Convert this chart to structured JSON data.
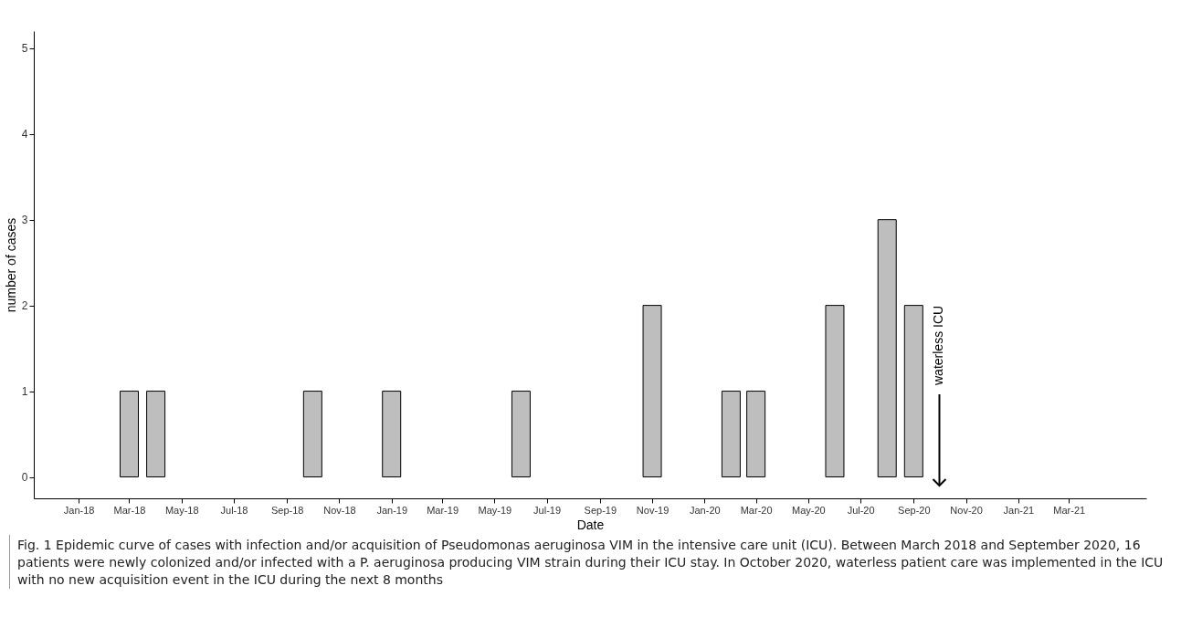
{
  "chart_data": {
    "type": "bar",
    "xlabel": "Date",
    "ylabel": "number of cases",
    "x": [
      "2018-03",
      "2018-04",
      "2018-10",
      "2019-01",
      "2019-06",
      "2019-11",
      "2020-02",
      "2020-03",
      "2020-06",
      "2020-08",
      "2020-09"
    ],
    "values": [
      1,
      1,
      1,
      1,
      1,
      2,
      1,
      1,
      2,
      3,
      2
    ],
    "color": "#bebebe",
    "xlim": [
      "2017-11-15",
      "2021-05-25"
    ],
    "xticks": [
      {
        "value": "2018-01",
        "label": "Jan-18"
      },
      {
        "value": "2018-03",
        "label": "Mar-18"
      },
      {
        "value": "2018-05",
        "label": "May-18"
      },
      {
        "value": "2018-07",
        "label": "Jul-18"
      },
      {
        "value": "2018-09",
        "label": "Sep-18"
      },
      {
        "value": "2018-11",
        "label": "Nov-18"
      },
      {
        "value": "2019-01",
        "label": "Jan-19"
      },
      {
        "value": "2019-03",
        "label": "Mar-19"
      },
      {
        "value": "2019-05",
        "label": "May-19"
      },
      {
        "value": "2019-07",
        "label": "Jul-19"
      },
      {
        "value": "2019-09",
        "label": "Sep-19"
      },
      {
        "value": "2019-11",
        "label": "Nov-19"
      },
      {
        "value": "2020-01",
        "label": "Jan-20"
      },
      {
        "value": "2020-03",
        "label": "Mar-20"
      },
      {
        "value": "2020-05",
        "label": "May-20"
      },
      {
        "value": "2020-07",
        "label": "Jul-20"
      },
      {
        "value": "2020-09",
        "label": "Sep-20"
      },
      {
        "value": "2020-11",
        "label": "Nov-20"
      },
      {
        "value": "2021-01",
        "label": "Jan-21"
      },
      {
        "value": "2021-03",
        "label": "Mar-21"
      }
    ],
    "ylim": [
      -0.25,
      5.2
    ],
    "yticks": [
      0,
      1,
      2,
      3,
      4,
      5
    ],
    "grid": false,
    "ref_lines": [
      {
        "axis": "x",
        "value": "2020-10",
        "label": "waterless ICU"
      }
    ],
    "annotations": [
      "Fig. 1 Epidemic curve of cases with infection and/or acquisition of Pseudomonas aeruginosa VIM in the intensive care unit (ICU). Between March 2018 and September 2020, 16 patients were newly colonized and/or infected with a P. aeruginosa producing VIM strain during their ICU stay. In October 2020, waterless patient care was implemented in the ICU with no new acquisition event in the ICU during the next 8 months"
    ]
  }
}
